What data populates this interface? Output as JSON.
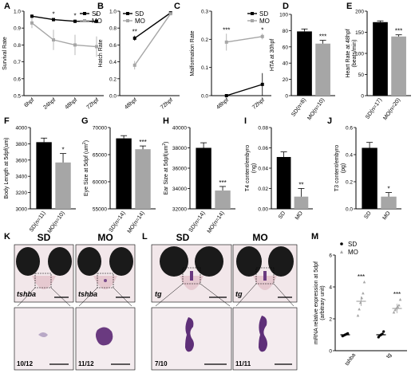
{
  "panel_letters": [
    "A",
    "B",
    "C",
    "D",
    "E",
    "F",
    "G",
    "H",
    "I",
    "J",
    "K",
    "L",
    "M"
  ],
  "colors": {
    "sd": "#000000",
    "mo": "#a6a6a6"
  },
  "chart_data": [
    {
      "id": "A",
      "type": "line",
      "ylabel": "Survival Rate",
      "ylim": [
        0.5,
        1.0
      ],
      "yticks": [
        "0.5",
        "0.6",
        "0.7",
        "0.8",
        "0.9",
        "1.0"
      ],
      "categories": [
        "6hpf",
        "24hpf",
        "48hpf",
        "72hpf"
      ],
      "series": [
        {
          "name": "SD",
          "values": [
            0.97,
            0.95,
            0.94,
            0.94
          ],
          "err": [
            0.01,
            0.01,
            0.01,
            0.01
          ]
        },
        {
          "name": "MO",
          "values": [
            0.93,
            0.83,
            0.8,
            0.79
          ],
          "err": [
            0.03,
            0.06,
            0.06,
            0.06
          ]
        }
      ],
      "annotations": [
        "*",
        "*",
        "*"
      ],
      "legend": "top-right"
    },
    {
      "id": "B",
      "type": "line",
      "ylabel": "Hatch Rate",
      "ylim": [
        0.0,
        1.0
      ],
      "yticks": [
        "0.0",
        "0.2",
        "0.4",
        "0.6",
        "0.8",
        "1.0"
      ],
      "categories": [
        "48hpf",
        "72hpf"
      ],
      "series": [
        {
          "name": "SD",
          "values": [
            0.68,
            0.98
          ],
          "err": [
            0.03,
            0.01
          ]
        },
        {
          "name": "MO",
          "values": [
            0.36,
            0.97
          ],
          "err": [
            0.05,
            0.01
          ]
        }
      ],
      "annotations": [
        "**"
      ],
      "legend": "top-left"
    },
    {
      "id": "C",
      "type": "line",
      "ylabel": "Malformation Rate",
      "ylim": [
        0.0,
        0.3
      ],
      "yticks": [
        "0.0",
        "0.1",
        "0.2",
        "0.3"
      ],
      "categories": [
        "48hpf",
        "72hpf"
      ],
      "series": [
        {
          "name": "SD",
          "values": [
            0.0,
            0.04
          ],
          "err": [
            0.0,
            0.04
          ]
        },
        {
          "name": "MO",
          "values": [
            0.19,
            0.21
          ],
          "err": [
            0.03,
            0.01
          ]
        }
      ],
      "annotations": [
        "***",
        "*"
      ],
      "legend": "top-right"
    },
    {
      "id": "D",
      "type": "bar",
      "ylabel": "HTA at 30hpf",
      "ylim": [
        0,
        100
      ],
      "yticks": [
        "0",
        "20",
        "40",
        "60",
        "80",
        "100"
      ],
      "categories": [
        "SD(n=8)",
        "MO(n=10)"
      ],
      "values": [
        79,
        64
      ],
      "err": [
        3,
        4
      ],
      "annotations": [
        "",
        "***"
      ]
    },
    {
      "id": "E",
      "type": "bar",
      "ylabel": "Heart Rate at 48hpf",
      "ylabel2": "(beats/min)",
      "ylim": [
        0,
        200
      ],
      "yticks": [
        "0",
        "50",
        "100",
        "150",
        "200"
      ],
      "categories": [
        "SD(n=17)",
        "MO(n=20)"
      ],
      "values": [
        174,
        140
      ],
      "err": [
        3,
        4
      ],
      "annotations": [
        "",
        "***"
      ]
    },
    {
      "id": "F",
      "type": "bar",
      "ylabel": "Body Length at 5dpf(um)",
      "ylim": [
        3000,
        4000
      ],
      "yticks": [
        "3000",
        "3200",
        "3400",
        "3600",
        "3800",
        "4000"
      ],
      "categories": [
        "SD(n=11)",
        "MO(n=10)"
      ],
      "values": [
        3820,
        3570
      ],
      "err": [
        50,
        110
      ],
      "annotations": [
        "",
        "*"
      ]
    },
    {
      "id": "G",
      "type": "bar",
      "ylabel": "Eye Size at 5dpf (um",
      "ylabel_sup": "2",
      "ylabel_close": ")",
      "ylim": [
        55000,
        70000
      ],
      "yticks": [
        "55000",
        "60000",
        "65000",
        "70000"
      ],
      "categories": [
        "SD(n=14)",
        "MO(n=14)"
      ],
      "values": [
        68000,
        66000
      ],
      "err": [
        500,
        600
      ],
      "annotations": [
        "",
        "***"
      ]
    },
    {
      "id": "H",
      "type": "bar",
      "ylabel": "Ear Size at 5dpf(um",
      "ylabel_sup": "2",
      "ylabel_close": ")",
      "ylim": [
        32000,
        40000
      ],
      "yticks": [
        "32000",
        "34000",
        "36000",
        "38000",
        "40000"
      ],
      "categories": [
        "SD(n=14)",
        "MO(n=14)"
      ],
      "values": [
        38000,
        33800
      ],
      "err": [
        500,
        400
      ],
      "annotations": [
        "",
        "***"
      ]
    },
    {
      "id": "I",
      "type": "bar",
      "ylabel": "T4 content/embyro",
      "ylabel2": "(ng)",
      "ylim": [
        0,
        0.08
      ],
      "yticks": [
        "0.00",
        "0.02",
        "0.04",
        "0.06",
        "0.08"
      ],
      "categories": [
        "SD",
        "MO"
      ],
      "values": [
        0.051,
        0.012
      ],
      "err": [
        0.005,
        0.008
      ],
      "annotations": [
        "",
        "**"
      ]
    },
    {
      "id": "J",
      "type": "bar",
      "ylabel": "T3 content/embyro",
      "ylabel2": "(pg)",
      "ylim": [
        0,
        0.6
      ],
      "yticks": [
        "0.0",
        "0.2",
        "0.4",
        "0.6"
      ],
      "categories": [
        "SD",
        "MO"
      ],
      "values": [
        0.45,
        0.09
      ],
      "err": [
        0.04,
        0.03
      ],
      "annotations": [
        "",
        "*"
      ]
    },
    {
      "id": "M",
      "type": "scatter",
      "ylabel": "mRNA relative expression at 5dpf",
      "ylabel2": "(arbitrary unit)",
      "ylim": [
        0,
        6
      ],
      "yticks": [
        "0",
        "2",
        "4",
        "6"
      ],
      "categories": [
        "tshba",
        "tg"
      ],
      "series": [
        {
          "name": "SD",
          "means": [
            1.0,
            1.0
          ],
          "points": [
            [
              0.92,
              0.96,
              1.0,
              1.04,
              1.08
            ],
            [
              0.85,
              0.95,
              1.0,
              1.05,
              1.2
            ]
          ]
        },
        {
          "name": "MO",
          "means": [
            3.1,
            2.65
          ],
          "points": [
            [
              2.2,
              2.6,
              3.0,
              3.3,
              3.6,
              4.3
            ],
            [
              2.4,
              2.55,
              2.65,
              2.75,
              2.85,
              3.2
            ]
          ]
        }
      ],
      "annotations": [
        "***",
        "***"
      ],
      "legend": "top-left"
    }
  ],
  "images": {
    "K": {
      "headers": [
        "SD",
        "MO"
      ],
      "gene": "tshba",
      "counts": [
        "10/12",
        "11/12"
      ]
    },
    "L": {
      "headers": [
        "SD",
        "MO"
      ],
      "gene": "tg",
      "counts": [
        "7/10",
        "11/11"
      ]
    }
  }
}
